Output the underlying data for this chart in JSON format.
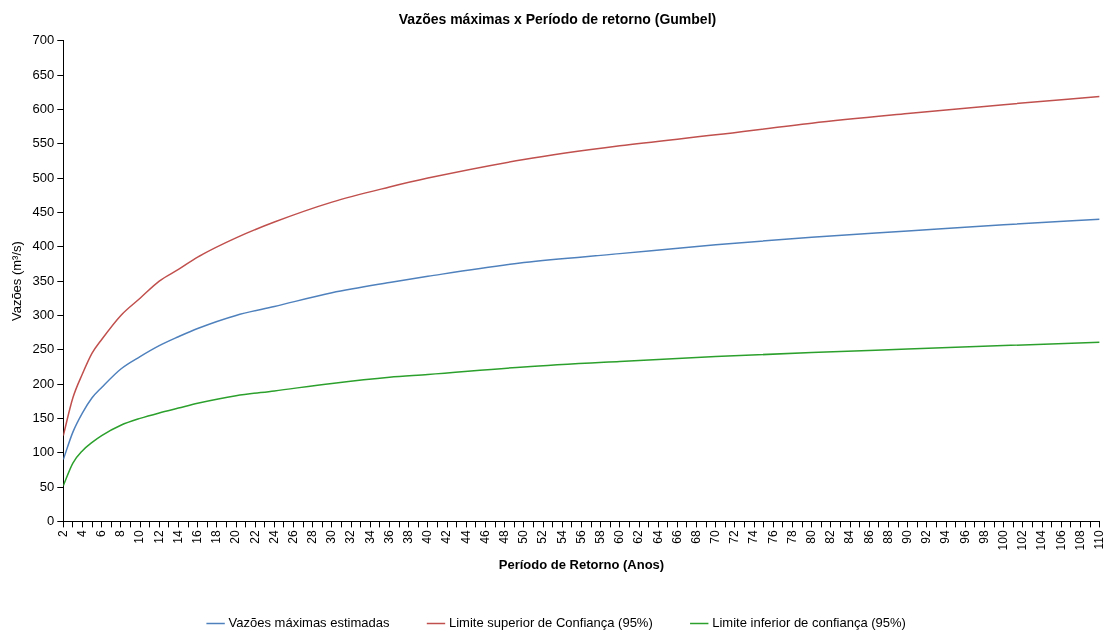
{
  "chart_data": {
    "type": "line",
    "title": "Vazões máximas x Período de retorno (Gumbel)",
    "xlabel": "Período de Retorno (Anos)",
    "ylabel": "Vazões (m³/s)",
    "x": [
      2,
      3,
      4,
      5,
      6,
      8,
      10,
      12,
      14,
      16,
      20,
      24,
      30,
      36,
      40,
      50,
      60,
      70,
      80,
      90,
      100,
      110
    ],
    "series": [
      {
        "name": "Vazões máximas estimadas",
        "color": "#4f81bd",
        "values": [
          90,
          130,
          158,
          180,
          195,
          222,
          240,
          256,
          269,
          281,
          300,
          313,
          333,
          348,
          357,
          377,
          390,
          403,
          414,
          423,
          432,
          440
        ]
      },
      {
        "name": "Limite superior de Confiança (95%)",
        "color": "#c0504d",
        "values": [
          125,
          180,
          215,
          245,
          265,
          300,
          325,
          350,
          367,
          385,
          413,
          436,
          465,
          487,
          500,
          527,
          547,
          563,
          580,
          594,
          607,
          619
        ]
      },
      {
        "name": "Limite inferior de confiança (95%)",
        "color": "#2ca02c",
        "values": [
          52,
          85,
          103,
          115,
          125,
          140,
          150,
          158,
          165,
          172,
          183,
          190,
          201,
          210,
          214,
          225,
          233,
          240,
          246,
          251,
          256,
          261
        ]
      }
    ],
    "xlim": [
      2,
      110
    ],
    "ylim": [
      0,
      700
    ],
    "yticks": [
      0,
      50,
      100,
      150,
      200,
      250,
      300,
      350,
      400,
      450,
      500,
      550,
      600,
      650,
      700
    ],
    "xticks": [
      2,
      {
        "value": 3,
        "label": null
      },
      4,
      {
        "value": 5,
        "label": null
      },
      6,
      {
        "value": 7,
        "label": null
      },
      8,
      {
        "value": 9,
        "label": null
      },
      10,
      {
        "value": 11,
        "label": null
      },
      12,
      {
        "value": 13,
        "label": null
      },
      14,
      {
        "value": 15,
        "label": null
      },
      16,
      {
        "value": 17,
        "label": null
      },
      18,
      {
        "value": 19,
        "label": null
      },
      20,
      {
        "value": 21,
        "label": null
      },
      22,
      {
        "value": 23,
        "label": null
      },
      24,
      {
        "value": 25,
        "label": null
      },
      26,
      {
        "value": 27,
        "label": null
      },
      28,
      {
        "value": 29,
        "label": null
      },
      30,
      {
        "value": 31,
        "label": null
      },
      32,
      {
        "value": 33,
        "label": null
      },
      34,
      {
        "value": 35,
        "label": null
      },
      36,
      {
        "value": 37,
        "label": null
      },
      38,
      {
        "value": 39,
        "label": null
      },
      40,
      {
        "value": 41,
        "label": null
      },
      42,
      {
        "value": 43,
        "label": null
      },
      44,
      {
        "value": 45,
        "label": null
      },
      46,
      {
        "value": 47,
        "label": null
      },
      48,
      {
        "value": 49,
        "label": null
      },
      50,
      {
        "value": 51,
        "label": null
      },
      52,
      {
        "value": 53,
        "label": null
      },
      54,
      {
        "value": 55,
        "label": null
      },
      56,
      {
        "value": 57,
        "label": null
      },
      58,
      {
        "value": 59,
        "label": null
      },
      60,
      {
        "value": 61,
        "label": null
      },
      62,
      {
        "value": 63,
        "label": null
      },
      64,
      {
        "value": 65,
        "label": null
      },
      66,
      {
        "value": 67,
        "label": null
      },
      68,
      {
        "value": 69,
        "label": null
      },
      70,
      {
        "value": 71,
        "label": null
      },
      72,
      {
        "value": 73,
        "label": null
      },
      74,
      {
        "value": 75,
        "label": null
      },
      76,
      {
        "value": 77,
        "label": null
      },
      78,
      {
        "value": 79,
        "label": null
      },
      80,
      {
        "value": 81,
        "label": null
      },
      82,
      {
        "value": 83,
        "label": null
      },
      84,
      {
        "value": 85,
        "label": null
      },
      86,
      {
        "value": 87,
        "label": null
      },
      88,
      {
        "value": 89,
        "label": null
      },
      90,
      {
        "value": 91,
        "label": null
      },
      92,
      {
        "value": 93,
        "label": null
      },
      94,
      {
        "value": 95,
        "label": null
      },
      96,
      {
        "value": 97,
        "label": null
      },
      98,
      {
        "value": 99,
        "label": null
      },
      100,
      {
        "value": 101,
        "label": null
      },
      102,
      {
        "value": 103,
        "label": null
      },
      104,
      {
        "value": 105,
        "label": null
      },
      106,
      {
        "value": 107,
        "label": null
      },
      108,
      {
        "value": 109,
        "label": null
      },
      110
    ],
    "grid": false,
    "legend": "bottom",
    "marker": "none",
    "line_style": "solid"
  }
}
